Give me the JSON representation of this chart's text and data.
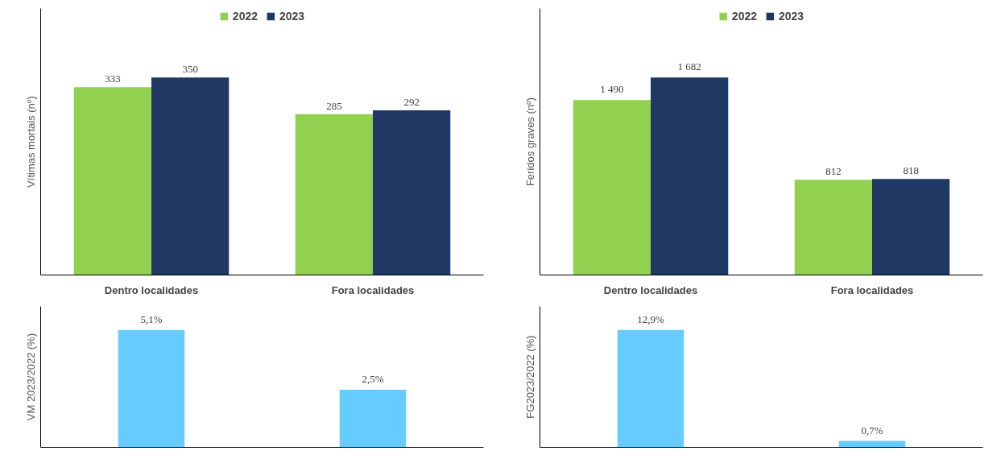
{
  "chart_data": [
    {
      "type": "bar",
      "ylabel": "Vítimas mortais (nº)",
      "categories": [
        "Dentro localidades",
        "Fora localidades"
      ],
      "legend": "top",
      "tick_labels": "x",
      "grid": false,
      "series": [
        {
          "name": "2022",
          "color": "#92d050",
          "values": [
            333,
            285
          ],
          "value_labels": [
            "333",
            "285"
          ]
        },
        {
          "name": "2023",
          "color": "#1f3864",
          "values": [
            350,
            292
          ],
          "value_labels": [
            "350",
            "292"
          ]
        }
      ]
    },
    {
      "type": "bar",
      "ylabel": "Feridos graves (nº)",
      "categories": [
        "Dentro localidades",
        "Fora localidades"
      ],
      "legend": "top",
      "tick_labels": "x",
      "grid": false,
      "series": [
        {
          "name": "2022",
          "color": "#92d050",
          "values": [
            1490,
            812
          ],
          "value_labels": [
            "1 490",
            "812"
          ]
        },
        {
          "name": "2023",
          "color": "#1f3864",
          "values": [
            1682,
            818
          ],
          "value_labels": [
            "1 682",
            "818"
          ]
        }
      ]
    },
    {
      "type": "bar",
      "ylabel": "VM 2023/2022 (%)",
      "categories": [
        null,
        null
      ],
      "tick_labels": false,
      "grid": false,
      "series": [
        {
          "color": "#66ccff",
          "values": [
            5.1,
            2.5
          ],
          "value_labels": [
            "5,1%",
            "2,5%"
          ]
        }
      ]
    },
    {
      "type": "bar",
      "ylabel": "FG2023/2022 (%)",
      "categories": [
        null,
        null
      ],
      "tick_labels": false,
      "grid": false,
      "series": [
        {
          "color": "#66ccff",
          "values": [
            12.9,
            0.7
          ],
          "value_labels": [
            "12,9%",
            "0,7%"
          ]
        }
      ]
    }
  ]
}
